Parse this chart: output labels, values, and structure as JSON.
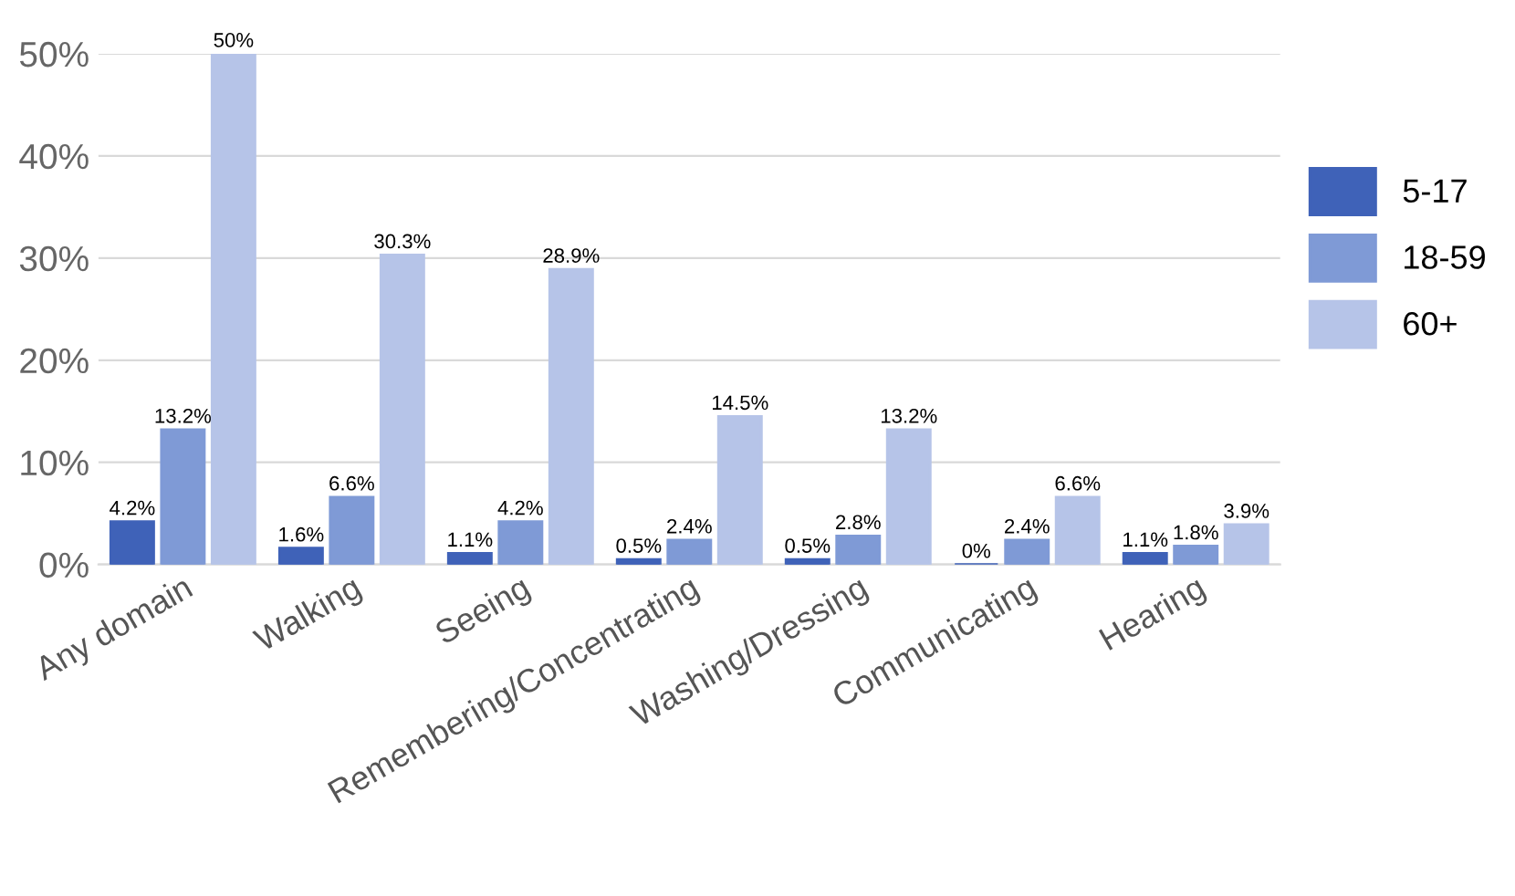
{
  "chart_data": {
    "type": "bar",
    "categories": [
      "Any domain",
      "Walking",
      "Seeing",
      "Remembering/Concentrating",
      "Washing/Dressing",
      "Communicating",
      "Hearing"
    ],
    "series": [
      {
        "name": "5-17",
        "color": "#3f62b8",
        "values": [
          4.2,
          1.6,
          1.1,
          0.5,
          0.5,
          0,
          1.1
        ],
        "value_labels": [
          "4.2%",
          "1.6%",
          "1.1%",
          "0.5%",
          "0.5%",
          "0%",
          "1.1%"
        ]
      },
      {
        "name": "18-59",
        "color": "#7f9ad6",
        "values": [
          13.2,
          6.6,
          4.2,
          2.4,
          2.8,
          2.4,
          1.8
        ],
        "value_labels": [
          "13.2%",
          "6.6%",
          "4.2%",
          "2.4%",
          "2.8%",
          "2.4%",
          "1.8%"
        ]
      },
      {
        "name": "60+",
        "color": "#b6c4e8",
        "values": [
          50,
          30.3,
          28.9,
          14.5,
          13.2,
          6.6,
          3.9
        ],
        "value_labels": [
          "50%",
          "30.3%",
          "28.9%",
          "14.5%",
          "13.2%",
          "6.6%",
          "3.9%"
        ]
      }
    ],
    "ylim": [
      0,
      50
    ],
    "yticks": [
      {
        "value": 0,
        "label": "0%"
      },
      {
        "value": 10,
        "label": "10%"
      },
      {
        "value": 20,
        "label": "20%"
      },
      {
        "value": 30,
        "label": "30%"
      },
      {
        "value": 40,
        "label": "40%"
      },
      {
        "value": 50,
        "label": "50%"
      }
    ],
    "grid": "y",
    "legend": "right"
  }
}
